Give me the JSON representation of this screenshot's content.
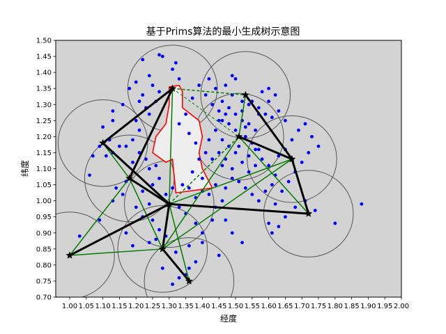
{
  "chart_data": {
    "type": "scatter",
    "title": "基于Prims算法的最小生成树示意图",
    "xlabel": "经度",
    "ylabel": "纬度",
    "xlim": [
      0.97,
      2.0
    ],
    "ylim": [
      0.7,
      1.5
    ],
    "xticks": [
      1.0,
      1.05,
      1.1,
      1.15,
      1.2,
      1.25,
      1.3,
      1.35,
      1.4,
      1.45,
      1.5,
      1.55,
      1.6,
      1.65,
      1.7,
      1.75,
      1.8,
      1.85,
      1.9,
      1.95,
      2.0
    ],
    "xtick_labels": [
      "1.00",
      "1.05",
      "1.10",
      "1.15",
      "1.20",
      "1.25",
      "1.30",
      "1.35",
      "1.40",
      "1.45",
      "1.50",
      "1.55",
      "1.60",
      "1.65",
      "1.70",
      "1.75",
      "1.80",
      "1.85",
      "1.90",
      "1.95",
      "2.00"
    ],
    "yticks": [
      0.7,
      0.75,
      0.8,
      0.85,
      0.9,
      0.95,
      1.0,
      1.05,
      1.1,
      1.15,
      1.2,
      1.25,
      1.3,
      1.35,
      1.4,
      1.45,
      1.5
    ],
    "ytick_labels": [
      "0.70",
      "0.75",
      "0.80",
      "0.85",
      "0.90",
      "0.95",
      "1.00",
      "1.05",
      "1.10",
      "1.15",
      "1.20",
      "1.25",
      "1.30",
      "1.35",
      "1.40",
      "1.45",
      "1.50"
    ],
    "grid": false,
    "colors": {
      "background": "#d3d3d3",
      "points": "#0000ff",
      "circles": "#555555",
      "obstacle_fill": "#eeeeee",
      "obstacle_edge": "#ff0000",
      "mst_edges": "#000000",
      "candidate_edges": "#007a00",
      "nodes": "#000000"
    },
    "coverage_radius": 0.135,
    "nodes": [
      {
        "x": 1.0,
        "y": 0.83
      },
      {
        "x": 1.1,
        "y": 1.18
      },
      {
        "x": 1.18,
        "y": 1.07
      },
      {
        "x": 1.28,
        "y": 0.85
      },
      {
        "x": 1.3,
        "y": 0.99
      },
      {
        "x": 1.31,
        "y": 1.35
      },
      {
        "x": 1.36,
        "y": 0.75
      },
      {
        "x": 1.53,
        "y": 1.33
      },
      {
        "x": 1.51,
        "y": 1.2
      },
      {
        "x": 1.67,
        "y": 1.13
      },
      {
        "x": 1.72,
        "y": 0.96
      }
    ],
    "mst_edges": [
      [
        0,
        4
      ],
      [
        4,
        1
      ],
      [
        1,
        5
      ],
      [
        5,
        2
      ],
      [
        2,
        4
      ],
      [
        4,
        3
      ],
      [
        3,
        6
      ],
      [
        4,
        10
      ],
      [
        10,
        9
      ],
      [
        9,
        7
      ],
      [
        9,
        8
      ]
    ],
    "candidate_edges": [
      [
        0,
        2
      ],
      [
        0,
        3
      ],
      [
        2,
        3
      ],
      [
        1,
        2
      ],
      [
        5,
        4
      ],
      [
        3,
        8
      ],
      [
        4,
        8
      ],
      [
        8,
        10
      ],
      [
        8,
        7
      ],
      [
        5,
        7
      ],
      [
        6,
        4
      ],
      [
        3,
        9
      ],
      [
        4,
        9
      ]
    ],
    "candidate_dashed": [
      [
        5,
        7
      ],
      [
        5,
        8
      ],
      [
        4,
        8
      ]
    ],
    "obstacle": [
      [
        1.3,
        1.355
      ],
      [
        1.33,
        1.36
      ],
      [
        1.34,
        1.34
      ],
      [
        1.34,
        1.29
      ],
      [
        1.39,
        1.25
      ],
      [
        1.4,
        1.2
      ],
      [
        1.39,
        1.15
      ],
      [
        1.4,
        1.1
      ],
      [
        1.43,
        1.04
      ],
      [
        1.32,
        1.025
      ],
      [
        1.31,
        1.13
      ],
      [
        1.29,
        1.12
      ],
      [
        1.25,
        1.15
      ],
      [
        1.26,
        1.2
      ],
      [
        1.29,
        1.24
      ],
      [
        1.3,
        1.3
      ]
    ],
    "scatter": [
      [
        1.27,
        1.455
      ],
      [
        1.32,
        1.43
      ],
      [
        1.22,
        1.44
      ],
      [
        1.33,
        1.38
      ],
      [
        1.28,
        1.45
      ],
      [
        1.31,
        1.41
      ],
      [
        1.24,
        1.39
      ],
      [
        1.2,
        1.37
      ],
      [
        1.22,
        1.33
      ],
      [
        1.25,
        1.36
      ],
      [
        1.18,
        1.35
      ],
      [
        1.21,
        1.31
      ],
      [
        1.16,
        1.3
      ],
      [
        1.13,
        1.28
      ],
      [
        1.13,
        1.25
      ],
      [
        1.1,
        1.23
      ],
      [
        1.12,
        1.19
      ],
      [
        1.09,
        1.17
      ],
      [
        1.07,
        1.14
      ],
      [
        1.11,
        1.14
      ],
      [
        1.13,
        1.15
      ],
      [
        1.15,
        1.17
      ],
      [
        1.17,
        1.17
      ],
      [
        1.19,
        1.19
      ],
      [
        1.21,
        1.22
      ],
      [
        1.2,
        1.25
      ],
      [
        1.24,
        1.27
      ],
      [
        1.23,
        1.29
      ],
      [
        1.26,
        1.31
      ],
      [
        1.27,
        1.34
      ],
      [
        1.21,
        1.15
      ],
      [
        1.23,
        1.13
      ],
      [
        1.19,
        1.12
      ],
      [
        1.17,
        1.06
      ],
      [
        1.14,
        1.04
      ],
      [
        1.06,
        1.08
      ],
      [
        1.24,
        1.1
      ],
      [
        1.26,
        1.11
      ],
      [
        1.27,
        1.07
      ],
      [
        1.25,
        1.05
      ],
      [
        1.22,
        1.03
      ],
      [
        1.24,
        0.99
      ],
      [
        1.2,
        0.98
      ],
      [
        1.22,
        0.95
      ],
      [
        1.25,
        0.94
      ],
      [
        1.27,
        0.91
      ],
      [
        1.29,
        0.89
      ],
      [
        1.26,
        0.88
      ],
      [
        1.24,
        0.87
      ],
      [
        1.19,
        0.86
      ],
      [
        1.17,
        0.9
      ],
      [
        1.03,
        0.89
      ],
      [
        1.09,
        0.94
      ],
      [
        1.28,
        0.79
      ],
      [
        1.31,
        0.74
      ],
      [
        1.33,
        0.76
      ],
      [
        1.35,
        0.77
      ],
      [
        1.36,
        0.79
      ],
      [
        1.38,
        0.81
      ],
      [
        1.32,
        0.84
      ],
      [
        1.36,
        0.86
      ],
      [
        1.4,
        0.9
      ],
      [
        1.43,
        0.94
      ],
      [
        1.44,
        0.98
      ],
      [
        1.46,
        1.0
      ],
      [
        1.42,
        1.02
      ],
      [
        1.38,
        1.01
      ],
      [
        1.36,
        1.04
      ],
      [
        1.4,
        1.07
      ],
      [
        1.44,
        1.05
      ],
      [
        1.47,
        1.04
      ],
      [
        1.49,
        1.07
      ],
      [
        1.46,
        1.11
      ],
      [
        1.43,
        1.13
      ],
      [
        1.41,
        1.15
      ],
      [
        1.42,
        1.19
      ],
      [
        1.44,
        1.22
      ],
      [
        1.46,
        1.25
      ],
      [
        1.45,
        1.28
      ],
      [
        1.43,
        1.3
      ],
      [
        1.41,
        1.33
      ],
      [
        1.44,
        1.35
      ],
      [
        1.47,
        1.36
      ],
      [
        1.49,
        1.39
      ],
      [
        1.5,
        1.38
      ],
      [
        1.46,
        1.31
      ],
      [
        1.48,
        1.29
      ],
      [
        1.5,
        1.27
      ],
      [
        1.52,
        1.28
      ],
      [
        1.54,
        1.3
      ],
      [
        1.52,
        1.31
      ],
      [
        1.49,
        1.33
      ],
      [
        1.47,
        1.27
      ],
      [
        1.45,
        1.25
      ],
      [
        1.48,
        1.24
      ],
      [
        1.5,
        1.22
      ],
      [
        1.52,
        1.25
      ],
      [
        1.54,
        1.24
      ],
      [
        1.56,
        1.22
      ],
      [
        1.57,
        1.27
      ],
      [
        1.55,
        1.31
      ],
      [
        1.57,
        1.29
      ],
      [
        1.59,
        1.27
      ],
      [
        1.61,
        1.26
      ],
      [
        1.6,
        1.31
      ],
      [
        1.62,
        1.33
      ],
      [
        1.58,
        1.34
      ],
      [
        1.6,
        1.35
      ],
      [
        1.63,
        1.28
      ],
      [
        1.65,
        1.25
      ],
      [
        1.53,
        1.2
      ],
      [
        1.55,
        1.18
      ],
      [
        1.57,
        1.16
      ],
      [
        1.58,
        1.13
      ],
      [
        1.56,
        1.11
      ],
      [
        1.54,
        1.09
      ],
      [
        1.52,
        1.12
      ],
      [
        1.5,
        1.15
      ],
      [
        1.48,
        1.17
      ],
      [
        1.46,
        1.19
      ],
      [
        1.45,
        1.15
      ],
      [
        1.47,
        1.13
      ],
      [
        1.49,
        1.1
      ],
      [
        1.51,
        1.06
      ],
      [
        1.53,
        1.04
      ],
      [
        1.55,
        1.02
      ],
      [
        1.57,
        1.0
      ],
      [
        1.59,
        1.03
      ],
      [
        1.61,
        1.05
      ],
      [
        1.62,
        1.08
      ],
      [
        1.6,
        1.11
      ],
      [
        1.63,
        1.14
      ],
      [
        1.65,
        1.16
      ],
      [
        1.67,
        1.19
      ],
      [
        1.69,
        1.22
      ],
      [
        1.71,
        1.24
      ],
      [
        1.73,
        1.2
      ],
      [
        1.75,
        1.17
      ],
      [
        1.72,
        1.15
      ],
      [
        1.7,
        1.12
      ],
      [
        1.68,
        1.09
      ],
      [
        1.66,
        1.06
      ],
      [
        1.64,
        1.03
      ],
      [
        1.62,
        0.99
      ],
      [
        1.6,
        0.93
      ],
      [
        1.61,
        0.9
      ],
      [
        1.63,
        0.92
      ],
      [
        1.65,
        0.95
      ],
      [
        1.68,
        0.98
      ],
      [
        1.71,
        1.0
      ],
      [
        1.74,
        0.97
      ],
      [
        1.8,
        0.93
      ],
      [
        1.88,
        0.99
      ],
      [
        1.52,
        0.87
      ],
      [
        1.49,
        0.9
      ],
      [
        1.47,
        0.94
      ],
      [
        1.45,
        0.83
      ],
      [
        1.4,
        0.87
      ],
      [
        1.38,
        0.93
      ],
      [
        1.35,
        0.96
      ],
      [
        1.33,
        0.98
      ],
      [
        1.31,
        1.04
      ],
      [
        1.34,
        1.05
      ],
      [
        1.29,
        1.02
      ],
      [
        1.13,
        1.0
      ],
      [
        1.16,
        1.02
      ],
      [
        1.42,
        1.38
      ],
      [
        1.39,
        1.36
      ],
      [
        1.37,
        1.32
      ],
      [
        1.35,
        1.27
      ],
      [
        1.33,
        1.24
      ],
      [
        1.36,
        1.21
      ],
      [
        1.38,
        1.18
      ],
      [
        1.39,
        1.13
      ],
      [
        1.37,
        1.09
      ],
      [
        1.4,
        1.03
      ],
      [
        1.56,
        1.16
      ],
      [
        1.54,
        1.14
      ],
      [
        1.51,
        1.17
      ],
      [
        1.53,
        1.23
      ]
    ]
  }
}
